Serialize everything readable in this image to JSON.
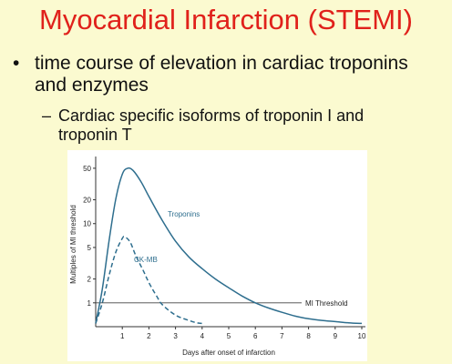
{
  "slide": {
    "title": "Myocardial Infarction (STEMI)",
    "bullet": "time course of elevation in cardiac troponins and enzymes",
    "subbullet": "Cardiac specific isoforms of troponin I and troponin T"
  },
  "chart_data": {
    "type": "line",
    "xlabel": "Days after onset of infarction",
    "ylabel": "Multiples of MI threshold",
    "x_ticks": [
      1,
      2,
      3,
      4,
      5,
      6,
      7,
      8,
      9,
      10
    ],
    "y_ticks": [
      1,
      2,
      5,
      10,
      20,
      50
    ],
    "y_scale": "log",
    "xlim": [
      0,
      10
    ],
    "ylim": [
      0.5,
      60
    ],
    "grid": false,
    "series": [
      {
        "name": "Troponins",
        "color": "#2e6e8e",
        "style": "solid",
        "x": [
          0,
          0.25,
          0.5,
          0.75,
          1.0,
          1.2,
          1.4,
          1.7,
          2.0,
          2.5,
          3.0,
          3.5,
          4.0,
          4.5,
          5.0,
          5.5,
          6.0,
          6.5,
          7.0,
          7.5,
          8.0,
          8.5,
          9.0,
          9.5,
          10.0
        ],
        "y": [
          0.55,
          1.5,
          6,
          20,
          42,
          50,
          47,
          34,
          22,
          11,
          6,
          3.8,
          2.7,
          2.0,
          1.55,
          1.22,
          1.0,
          0.86,
          0.76,
          0.68,
          0.63,
          0.6,
          0.58,
          0.56,
          0.55
        ]
      },
      {
        "name": "CK-MB",
        "color": "#2e6e8e",
        "style": "dashed",
        "x": [
          0,
          0.25,
          0.5,
          0.75,
          1.0,
          1.1,
          1.3,
          1.5,
          1.8,
          2.0,
          2.3,
          2.5,
          3.0,
          3.5,
          3.8,
          4.0
        ],
        "y": [
          0.55,
          1.0,
          2.2,
          4.3,
          6.5,
          6.8,
          5.8,
          4.0,
          2.5,
          1.8,
          1.2,
          0.95,
          0.7,
          0.6,
          0.56,
          0.55
        ]
      }
    ],
    "reference_lines": [
      {
        "y": 1,
        "label": "MI Threshold"
      }
    ]
  }
}
